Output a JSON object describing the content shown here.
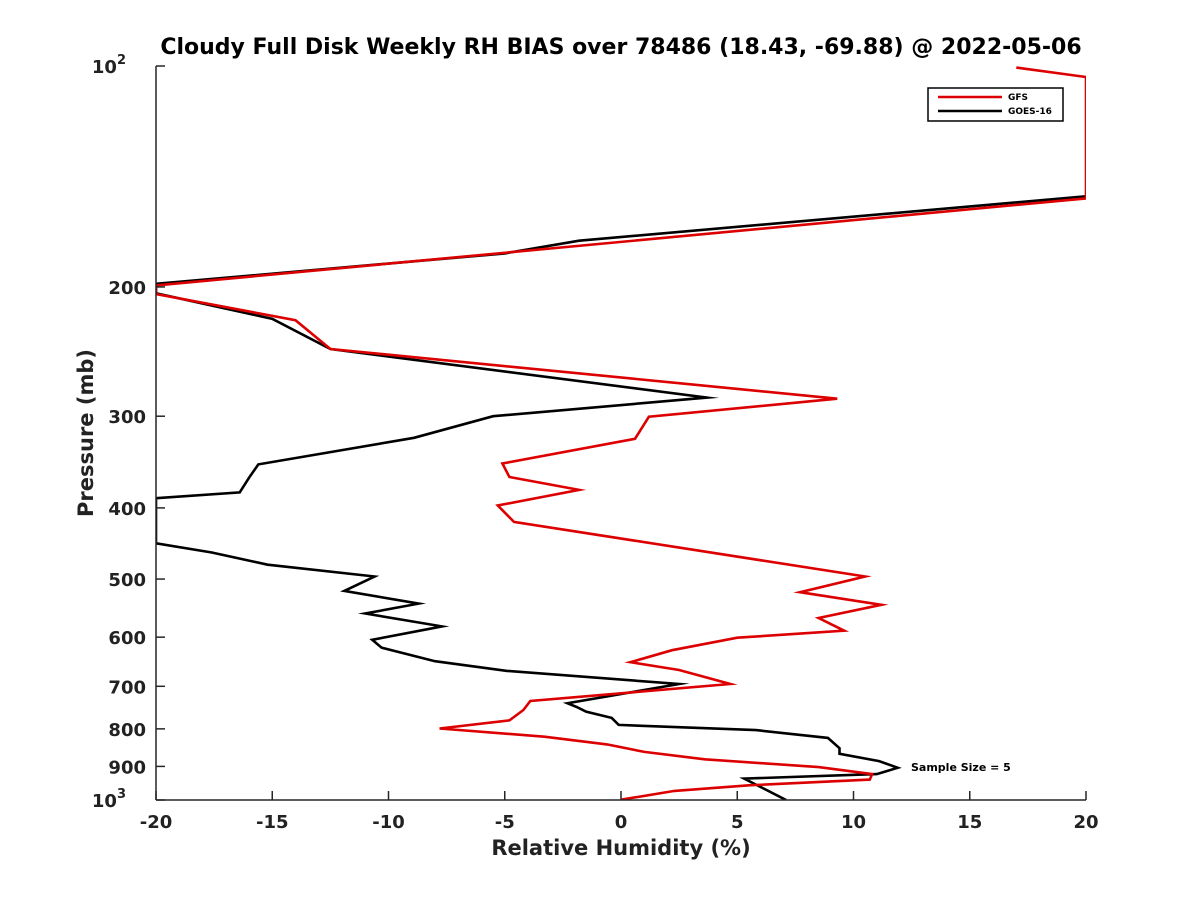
{
  "chart_data": {
    "type": "line",
    "title": "Cloudy Full Disk Weekly RH BIAS over 78486 (18.43, -69.88) @ 2022-05-06",
    "xlabel": "Relative Humidity (%)",
    "ylabel": "Pressure (mb)",
    "xlim": [
      -20,
      20
    ],
    "ylim": [
      100,
      1000
    ],
    "y_scale": "log",
    "y_reversed": true,
    "grid": false,
    "legend_position": "top-right",
    "annotation": "Sample Size = 5",
    "xticks": [
      {
        "value": -20,
        "label": "-20"
      },
      {
        "value": -15,
        "label": "-15"
      },
      {
        "value": -10,
        "label": "-10"
      },
      {
        "value": -5,
        "label": "-5"
      },
      {
        "value": 0,
        "label": "0"
      },
      {
        "value": 5,
        "label": "5"
      },
      {
        "value": 10,
        "label": "10"
      },
      {
        "value": 15,
        "label": "15"
      },
      {
        "value": 20,
        "label": "20"
      }
    ],
    "yticks": [
      {
        "value": 100,
        "base": "10",
        "exp": "2"
      },
      {
        "value": 200,
        "label": "200"
      },
      {
        "value": 300,
        "label": "300"
      },
      {
        "value": 400,
        "label": "400"
      },
      {
        "value": 500,
        "label": "500"
      },
      {
        "value": 600,
        "label": "600"
      },
      {
        "value": 700,
        "label": "700"
      },
      {
        "value": 800,
        "label": "800"
      },
      {
        "value": 900,
        "label": "900"
      },
      {
        "value": 1000,
        "base": "10",
        "exp": "3"
      }
    ],
    "series": [
      {
        "name": "GFS",
        "color": "#dd0000",
        "points": [
          [
            17,
            100.5
          ],
          [
            20,
            103.5
          ],
          [
            20,
            151.5
          ],
          [
            -20,
            199
          ],
          [
            -20,
            200
          ],
          [
            -20,
            204.5
          ],
          [
            -14,
            222
          ],
          [
            -12.5,
            243
          ],
          [
            9.3,
            284
          ],
          [
            1.2,
            300.5
          ],
          [
            0.6,
            322
          ],
          [
            -5.1,
            348
          ],
          [
            -4.8,
            363
          ],
          [
            -1.8,
            378
          ],
          [
            -5.3,
            397
          ],
          [
            -4.6,
            418
          ],
          [
            10.5,
            496
          ],
          [
            7.7,
            521
          ],
          [
            11.2,
            542
          ],
          [
            8.5,
            565
          ],
          [
            9.6,
            588
          ],
          [
            5,
            601
          ],
          [
            2.2,
            625
          ],
          [
            0.4,
            649
          ],
          [
            2.5,
            665
          ],
          [
            4.7,
            695
          ],
          [
            -3.9,
            733
          ],
          [
            -4.2,
            754
          ],
          [
            -4.8,
            779
          ],
          [
            -7.8,
            799
          ],
          [
            -3.3,
            820
          ],
          [
            -0.6,
            840
          ],
          [
            1,
            860
          ],
          [
            3.6,
            880
          ],
          [
            8.5,
            902
          ],
          [
            10.8,
            922
          ],
          [
            10.7,
            938
          ],
          [
            5.5,
            955
          ],
          [
            2.3,
            972
          ],
          [
            0,
            999
          ]
        ]
      },
      {
        "name": "GOES-16",
        "color": "#000000",
        "points": [
          [
            20,
            150.5
          ],
          [
            -1.8,
            173
          ],
          [
            -5,
            180
          ],
          [
            -20,
            198
          ],
          [
            -20,
            204
          ],
          [
            -15,
            221
          ],
          [
            -12.5,
            243
          ],
          [
            3.7,
            283
          ],
          [
            -5.5,
            300
          ],
          [
            -8.9,
            321
          ],
          [
            -15.6,
            349
          ],
          [
            -16,
            364
          ],
          [
            -16.4,
            381
          ],
          [
            -20,
            388
          ],
          [
            -20,
            447
          ],
          [
            -17.6,
            460
          ],
          [
            -15.2,
            478
          ],
          [
            -10.6,
            496
          ],
          [
            -11.9,
            519
          ],
          [
            -8.7,
            540
          ],
          [
            -11,
            557
          ],
          [
            -7.7,
            580
          ],
          [
            -10.7,
            605
          ],
          [
            -10.3,
            620
          ],
          [
            -8,
            647
          ],
          [
            -4.9,
            667
          ],
          [
            2.5,
            695
          ],
          [
            -2.3,
            738
          ],
          [
            -1.9,
            747
          ],
          [
            -1.5,
            758
          ],
          [
            -0.4,
            773
          ],
          [
            -0.1,
            790
          ],
          [
            5.8,
            803
          ],
          [
            8.9,
            823
          ],
          [
            9.4,
            850
          ],
          [
            9.4,
            865
          ],
          [
            11.1,
            885
          ],
          [
            11.9,
            904
          ],
          [
            11,
            922
          ],
          [
            5.3,
            935
          ],
          [
            7.1,
            1000
          ]
        ]
      }
    ]
  }
}
